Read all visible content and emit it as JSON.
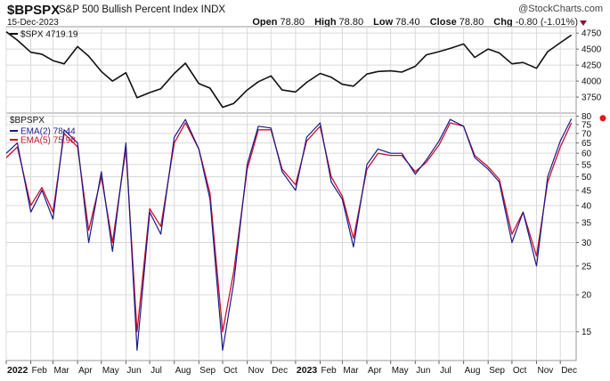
{
  "header": {
    "symbol": "$BPSPX",
    "name": "S&P 500 Bullish Percent Index",
    "exchange": "INDX",
    "date": "15-Dec-2023",
    "brand": "@StockCharts.com",
    "open_label": "Open",
    "open": "78.80",
    "high_label": "High",
    "high": "78.80",
    "low_label": "Low",
    "low": "78.40",
    "close_label": "Close",
    "close": "78.80",
    "chg_label": "Chg",
    "chg": "-0.80 (-1.01%)"
  },
  "colors": {
    "spx": "#111111",
    "bpspx": "#1a1a8c",
    "ema5": "#c8102e",
    "marker": "#e8101a",
    "grid": "#d9d9d9"
  },
  "chart_data": [
    {
      "type": "line",
      "panel": "upper",
      "legend": [
        {
          "label": "$SPX 4719.19",
          "marker": "line"
        }
      ],
      "ylim": [
        3500,
        4850
      ],
      "yticks": [
        3750,
        4000,
        4250,
        4500,
        4750
      ],
      "x": [
        "2022-01-01",
        "2022-01-15",
        "2022-02-01",
        "2022-02-15",
        "2022-03-01",
        "2022-03-15",
        "2022-04-01",
        "2022-04-15",
        "2022-05-01",
        "2022-05-15",
        "2022-06-01",
        "2022-06-15",
        "2022-07-01",
        "2022-07-15",
        "2022-08-01",
        "2022-08-15",
        "2022-09-01",
        "2022-09-15",
        "2022-10-01",
        "2022-10-15",
        "2022-11-01",
        "2022-11-15",
        "2022-12-01",
        "2022-12-15",
        "2023-01-01",
        "2023-01-15",
        "2023-02-01",
        "2023-02-15",
        "2023-03-01",
        "2023-03-15",
        "2023-04-01",
        "2023-04-15",
        "2023-05-01",
        "2023-05-15",
        "2023-06-01",
        "2023-06-15",
        "2023-07-01",
        "2023-07-15",
        "2023-08-01",
        "2023-08-15",
        "2023-09-01",
        "2023-09-15",
        "2023-10-01",
        "2023-10-15",
        "2023-11-01",
        "2023-11-15",
        "2023-12-01",
        "2023-12-15"
      ],
      "series": [
        {
          "name": "$SPX",
          "values": [
            4770,
            4640,
            4450,
            4420,
            4320,
            4270,
            4540,
            4390,
            4150,
            4000,
            4130,
            3740,
            3820,
            3880,
            4120,
            4280,
            3960,
            3890,
            3590,
            3650,
            3860,
            3990,
            4080,
            3860,
            3830,
            3980,
            4120,
            4060,
            3950,
            3920,
            4110,
            4150,
            4160,
            4140,
            4230,
            4410,
            4460,
            4510,
            4580,
            4370,
            4500,
            4440,
            4270,
            4290,
            4200,
            4460,
            4600,
            4719
          ]
        }
      ]
    },
    {
      "type": "line",
      "panel": "lower",
      "scale": "log",
      "title": "$BPSPX",
      "legend": [
        {
          "label": "EMA(2) 78.44",
          "marker": "line"
        },
        {
          "label": "EMA(5) 75.98",
          "marker": "line"
        }
      ],
      "ylim": [
        12,
        82
      ],
      "yticks": [
        15,
        20,
        25,
        30,
        35,
        40,
        45,
        50,
        55,
        60,
        65,
        70,
        75,
        80
      ],
      "last_value": 78.8,
      "x": [
        "2022-01-01",
        "2022-01-15",
        "2022-02-01",
        "2022-02-15",
        "2022-03-01",
        "2022-03-15",
        "2022-04-01",
        "2022-04-15",
        "2022-05-01",
        "2022-05-15",
        "2022-06-01",
        "2022-06-15",
        "2022-07-01",
        "2022-07-15",
        "2022-08-01",
        "2022-08-15",
        "2022-09-01",
        "2022-09-15",
        "2022-10-01",
        "2022-10-15",
        "2022-11-01",
        "2022-11-15",
        "2022-12-01",
        "2022-12-15",
        "2023-01-01",
        "2023-01-15",
        "2023-02-01",
        "2023-02-15",
        "2023-03-01",
        "2023-03-15",
        "2023-04-01",
        "2023-04-15",
        "2023-05-01",
        "2023-05-15",
        "2023-06-01",
        "2023-06-15",
        "2023-07-01",
        "2023-07-15",
        "2023-08-01",
        "2023-08-15",
        "2023-09-01",
        "2023-09-15",
        "2023-10-01",
        "2023-10-15",
        "2023-11-01",
        "2023-11-15",
        "2023-12-01",
        "2023-12-15"
      ],
      "series": [
        {
          "name": "EMA(2)",
          "values": [
            60,
            65,
            38,
            45,
            36,
            72,
            65,
            30,
            52,
            28,
            65,
            13,
            38,
            32,
            68,
            78,
            62,
            42,
            13,
            22,
            55,
            74,
            73,
            52,
            45,
            68,
            76,
            48,
            42,
            29,
            55,
            62,
            60,
            60,
            51,
            57,
            66,
            78,
            74,
            58,
            53,
            48,
            30,
            38,
            25,
            50,
            66,
            78.44
          ]
        },
        {
          "name": "EMA(5)",
          "values": [
            58,
            63,
            40,
            46,
            38,
            70,
            63,
            33,
            50,
            30,
            62,
            15,
            39,
            34,
            65,
            76,
            62,
            44,
            15,
            24,
            53,
            72,
            72,
            53,
            47,
            66,
            74,
            50,
            43,
            31,
            53,
            60,
            59,
            59,
            52,
            56,
            64,
            76,
            74,
            59,
            54,
            49,
            32,
            38,
            27,
            48,
            63,
            75.98
          ]
        }
      ]
    }
  ],
  "x_axis_labels": [
    {
      "text": "2022",
      "bold": true,
      "date": "2022-01-01"
    },
    {
      "text": "Feb",
      "date": "2022-02-01"
    },
    {
      "text": "Mar",
      "date": "2022-03-01"
    },
    {
      "text": "Apr",
      "date": "2022-04-01"
    },
    {
      "text": "May",
      "date": "2022-05-01"
    },
    {
      "text": "Jun",
      "date": "2022-06-01"
    },
    {
      "text": "Jul",
      "date": "2022-07-01"
    },
    {
      "text": "Aug",
      "date": "2022-08-01"
    },
    {
      "text": "Sep",
      "date": "2022-09-01"
    },
    {
      "text": "Oct",
      "date": "2022-10-01"
    },
    {
      "text": "Nov",
      "date": "2022-11-01"
    },
    {
      "text": "Dec",
      "date": "2022-12-01"
    },
    {
      "text": "2023",
      "bold": true,
      "date": "2023-01-01"
    },
    {
      "text": "Feb",
      "date": "2023-02-01"
    },
    {
      "text": "Mar",
      "date": "2023-03-01"
    },
    {
      "text": "Apr",
      "date": "2023-04-01"
    },
    {
      "text": "May",
      "date": "2023-05-01"
    },
    {
      "text": "Jun",
      "date": "2023-06-01"
    },
    {
      "text": "Jul",
      "date": "2023-07-01"
    },
    {
      "text": "Aug",
      "date": "2023-08-01"
    },
    {
      "text": "Sep",
      "date": "2023-09-01"
    },
    {
      "text": "Oct",
      "date": "2023-10-01"
    },
    {
      "text": "Nov",
      "date": "2023-11-01"
    },
    {
      "text": "Dec",
      "date": "2023-12-01"
    }
  ]
}
